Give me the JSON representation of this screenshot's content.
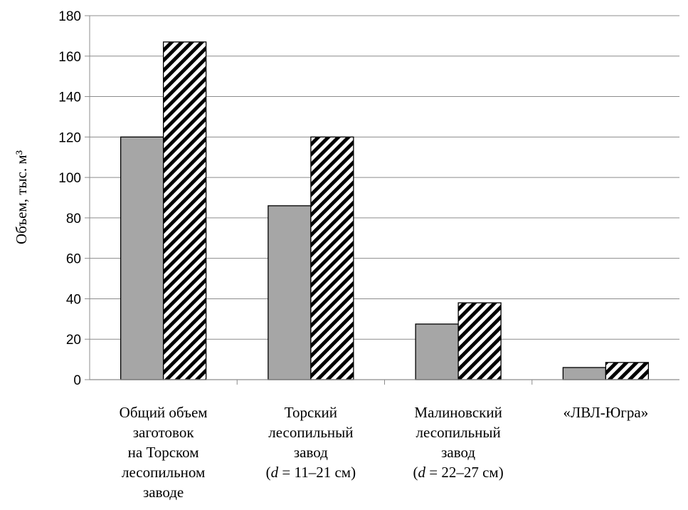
{
  "chart_data": {
    "type": "bar",
    "ylabel": "Объем, тыс. м³",
    "ylim": [
      0,
      180
    ],
    "y_ticks": [
      0,
      20,
      40,
      60,
      80,
      100,
      120,
      140,
      160,
      180
    ],
    "grid": true,
    "categories": [
      [
        "Общий объем",
        "заготовок",
        "на Торском",
        "лесопильном",
        "заводе"
      ],
      [
        "Торский",
        "лесопильный",
        "завод",
        "(d = 11–21 см)"
      ],
      [
        "Малиновский",
        "лесопильный",
        "завод",
        "(d = 22–27 см)"
      ],
      [
        "«ЛВЛ-Югра»"
      ]
    ],
    "series": [
      {
        "values": [
          120,
          86,
          27.5,
          6
        ],
        "fill": "solid",
        "color": "#a6a6a6"
      },
      {
        "values": [
          167,
          120,
          38,
          8.5
        ],
        "fill": "hatched",
        "color": "#000000"
      }
    ]
  }
}
